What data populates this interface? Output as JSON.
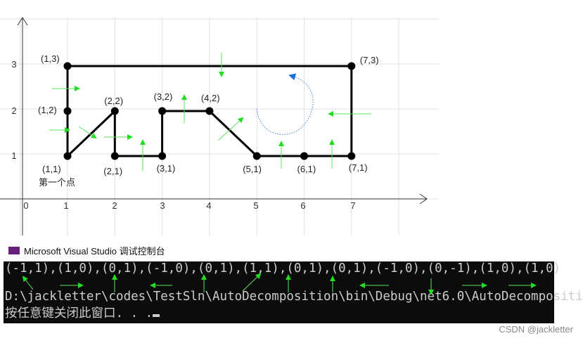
{
  "plot": {
    "x_ticks": [
      "0",
      "1",
      "2",
      "3",
      "4",
      "5",
      "6",
      "7"
    ],
    "y_ticks": [
      "1",
      "2",
      "3"
    ],
    "points": [
      "(1,3)",
      "(7,3)",
      "(1,2)",
      "(2,2)",
      "(3,2)",
      "(4,2)",
      "(1,1)",
      "(2,1)",
      "(3,1)",
      "(5,1)",
      "(6,1)",
      "(7,1)"
    ],
    "annotation": "第一个点"
  },
  "console": {
    "title": "Microsoft Visual Studio 调试控制台",
    "lines": [
      "(-1,1),(1,0),(0,1),(-1,0),(0,1),(1,1),(0,1),(0,1),(-1,0),(0,-1),(1,0),(1,0)",
      "D:\\jackletter\\codes\\TestSln\\AutoDecomposition\\bin\\Debug\\net6.0\\AutoDecompositi",
      "按任意键关闭此窗口. . ."
    ]
  },
  "watermark": "CSDN @jackletter"
}
